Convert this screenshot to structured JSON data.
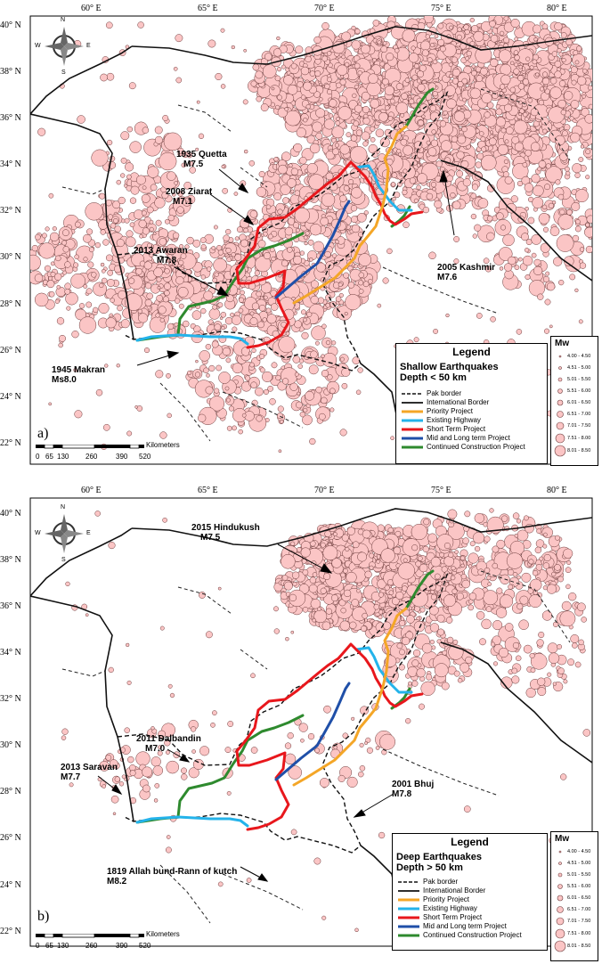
{
  "axes": {
    "lon_labels": [
      "60° E",
      "65° E",
      "70° E",
      "75° E",
      "80° E"
    ],
    "lat_labels": [
      "40° N",
      "38° N",
      "36° N",
      "34° N",
      "32° N",
      "30° N",
      "28° N",
      "26° N",
      "24° N",
      "22° N"
    ]
  },
  "compass": {
    "n": "N",
    "s": "S",
    "e": "E",
    "w": "W"
  },
  "scale_bar": {
    "ticks": [
      "0",
      "65",
      "130",
      "260",
      "390",
      "520"
    ],
    "unit": "Kilometers"
  },
  "colors": {
    "eq_fill": "#fbc5c5",
    "eq_stroke": "#6b3a3a",
    "priority": "#f4a627",
    "existing_highway": "#24b3ea",
    "short_term": "#e8171c",
    "mid_long_term": "#1f4fa8",
    "continued_construction": "#2e8a2e"
  },
  "panels": [
    {
      "id": "a",
      "letter": "a)",
      "legend": {
        "title": "Legend",
        "subtitle_line1": "Shallow Earthquakes",
        "subtitle_line2": "Depth < 50 km",
        "items": [
          "Pak border",
          "International Border",
          "Priority Project",
          "Existing Highway",
          "Short Term Project",
          "Mid and Long term Project",
          "Continued Construction Project"
        ]
      },
      "annotations": [
        {
          "line1": "1935 Quetta",
          "line2": "M7.5"
        },
        {
          "line1": "2008 Ziarat",
          "line2": "M7.1"
        },
        {
          "line1": "2013 Awaran",
          "line2": "M7.8"
        },
        {
          "line1": "1945 Makran",
          "line2": "Ms8.0"
        },
        {
          "line1": "2005 Kashmir",
          "line2": "M7.6"
        }
      ]
    },
    {
      "id": "b",
      "letter": "b)",
      "legend": {
        "title": "Legend",
        "subtitle_line1": "Deep Earthquakes",
        "subtitle_line2": "Depth > 50 km",
        "items": [
          "Pak border",
          "International Border",
          "Priority Project",
          "Existing Highway",
          "Short Term Project",
          "Mid and Long term Project",
          "Continued Construction Project"
        ]
      },
      "annotations": [
        {
          "line1": "2015 Hindukush",
          "line2": "M7.5"
        },
        {
          "line1": "2011 Dalbandin",
          "line2": "M7.0"
        },
        {
          "line1": "2013 Saravan",
          "line2": "M7.7"
        },
        {
          "line1": "2001 Bhuj",
          "line2": "M7.8"
        },
        {
          "line1": "1819 Allah bund-Rann of kutch",
          "line2": "M8.2"
        }
      ]
    }
  ],
  "magnitude_legend": {
    "title": "Mw",
    "classes": [
      "4.00 - 4.50",
      "4.51 - 5.00",
      "5.01 - 5.50",
      "5.51 - 6.00",
      "6.01 - 6.50",
      "6.51 - 7.00",
      "7.01 - 7.50",
      "7.51 - 8.00",
      "8.01 - 8.50"
    ]
  }
}
